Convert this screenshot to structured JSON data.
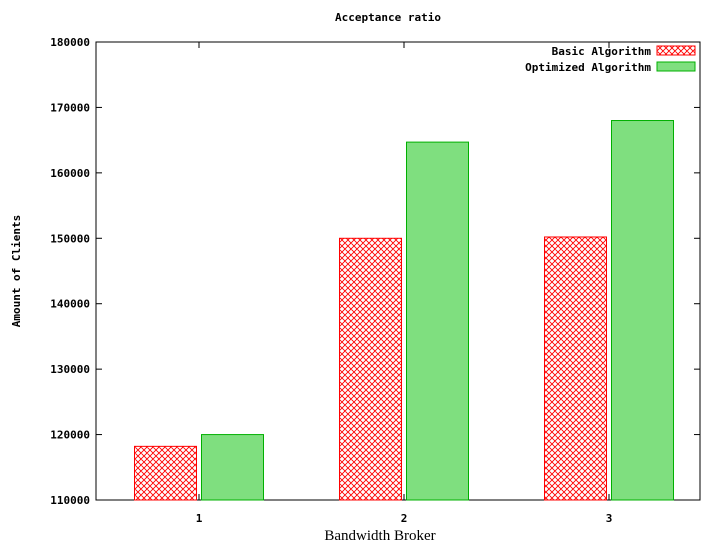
{
  "chart_data": {
    "type": "bar",
    "title": "Acceptance ratio",
    "xlabel": "Bandwidth Broker",
    "ylabel": "Amount of Clients",
    "categories": [
      "1",
      "2",
      "3"
    ],
    "ylim": [
      110000,
      180000
    ],
    "yticks": [
      "110000",
      "120000",
      "130000",
      "140000",
      "150000",
      "160000",
      "170000",
      "180000"
    ],
    "grid": false,
    "legend_position": "top-right",
    "series": [
      {
        "name": "Basic Algorithm",
        "values": [
          118200,
          150000,
          150200
        ],
        "color": "#ff0000",
        "fill": "crosshatch"
      },
      {
        "name": "Optimized Algorithm",
        "values": [
          120000,
          164700,
          168000
        ],
        "color": "#00b000",
        "fill_color": "#7fdf7f"
      }
    ]
  }
}
